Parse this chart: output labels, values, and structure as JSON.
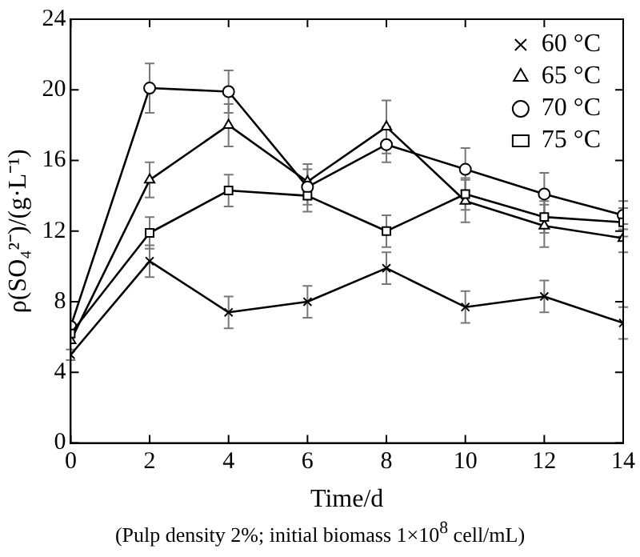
{
  "chart_data": {
    "type": "line",
    "xlabel": "Time/d",
    "ylabel": "ρ(SO₄²⁻)/(g·L⁻¹)",
    "x": [
      0,
      2,
      4,
      6,
      8,
      10,
      12,
      14
    ],
    "series": [
      {
        "name": "60 °C",
        "color": "#000000",
        "marker": "cross",
        "values": [
          5.0,
          10.3,
          7.4,
          8.0,
          9.9,
          7.7,
          8.3,
          6.8
        ],
        "errors": [
          0.3,
          0.9,
          0.9,
          0.9,
          0.9,
          0.9,
          0.9,
          0.9
        ]
      },
      {
        "name": "65 °C",
        "color": "#000000",
        "marker": "triangle",
        "values": [
          5.8,
          14.9,
          18.0,
          14.8,
          17.9,
          13.7,
          12.3,
          11.6
        ],
        "errors": [
          null,
          1.0,
          1.2,
          1.0,
          1.5,
          1.2,
          1.2,
          0.8
        ]
      },
      {
        "name": "70 °C",
        "color": "#000000",
        "marker": "circle",
        "values": [
          6.6,
          20.1,
          19.9,
          14.5,
          16.9,
          15.5,
          14.1,
          12.9
        ],
        "errors": [
          null,
          1.4,
          1.2,
          1.0,
          1.0,
          1.2,
          1.2,
          0.8
        ]
      },
      {
        "name": "75 °C",
        "color": "#000000",
        "marker": "square",
        "values": [
          6.2,
          11.9,
          14.3,
          14.0,
          12.0,
          14.1,
          12.8,
          12.5
        ],
        "errors": [
          null,
          0.9,
          0.9,
          0.9,
          0.9,
          0.9,
          0.9,
          0.8
        ]
      }
    ],
    "xlim": [
      0,
      14
    ],
    "xticks": [
      0,
      2,
      4,
      6,
      8,
      10,
      12,
      14
    ],
    "ylim": [
      0,
      24
    ],
    "yticks": [
      0,
      4,
      8,
      12,
      16,
      20,
      24
    ],
    "grid": false,
    "legend": "top right",
    "line_style": "solid",
    "annotations": [
      "(Pulp density 2%; initial biomass 1×10$^{8}$ cell/mL)"
    ]
  }
}
